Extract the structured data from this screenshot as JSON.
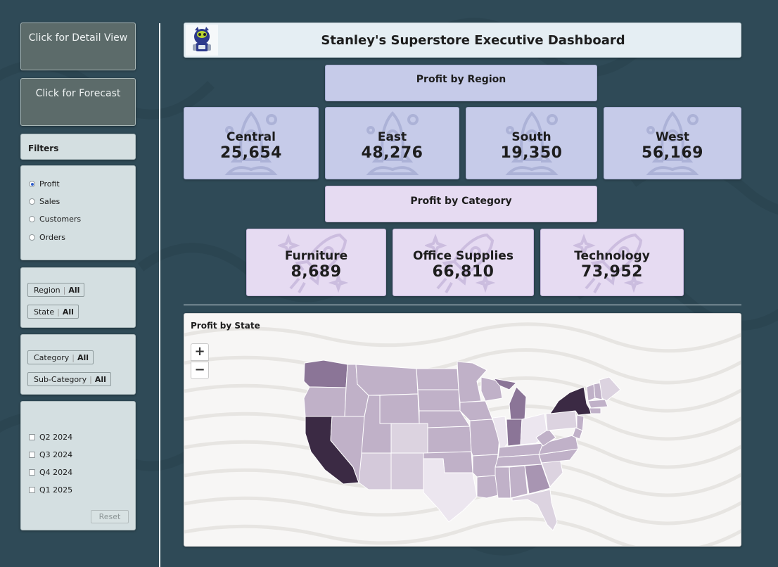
{
  "sidebar": {
    "detail_button": "Click for Detail View",
    "forecast_button": "Click for Forecast",
    "filters_title": "Filters",
    "measures": [
      {
        "label": "Profit",
        "selected": true
      },
      {
        "label": "Sales",
        "selected": false
      },
      {
        "label": "Customers",
        "selected": false
      },
      {
        "label": "Orders",
        "selected": false
      }
    ],
    "region_filter": {
      "label": "Region",
      "value": "All"
    },
    "state_filter": {
      "label": "State",
      "value": "All"
    },
    "category_filter": {
      "label": "Category",
      "value": "All"
    },
    "subcategory_filter": {
      "label": "Sub-Category",
      "value": "All"
    },
    "quarters": [
      {
        "label": "Q2 2024",
        "checked": false
      },
      {
        "label": "Q3 2024",
        "checked": false
      },
      {
        "label": "Q4 2024",
        "checked": false
      },
      {
        "label": "Q1 2025",
        "checked": false
      }
    ],
    "reset_button": "Reset"
  },
  "header": {
    "title": "Stanley's Superstore Executive Dashboard"
  },
  "region": {
    "title": "Profit by Region",
    "items": [
      {
        "label": "Central",
        "value": "25,654"
      },
      {
        "label": "East",
        "value": "48,276"
      },
      {
        "label": "South",
        "value": "19,350"
      },
      {
        "label": "West",
        "value": "56,169"
      }
    ]
  },
  "category": {
    "title": "Profit by Category",
    "items": [
      {
        "label": "Furniture",
        "value": "8,689"
      },
      {
        "label": "Office Supplies",
        "value": "66,810"
      },
      {
        "label": "Technology",
        "value": "73,952"
      }
    ]
  },
  "map": {
    "title": "Profit by State",
    "zoom_in": "+",
    "zoom_out": "−"
  },
  "colors": {
    "background": "#2f4a57",
    "region_card": "#c6cbe9",
    "category_card": "#e6dbf2",
    "map_darkest": "#3b2a44",
    "map_mid": "#8b7597",
    "map_light": "#c0b1c8",
    "map_lightest": "#ece6ef"
  }
}
